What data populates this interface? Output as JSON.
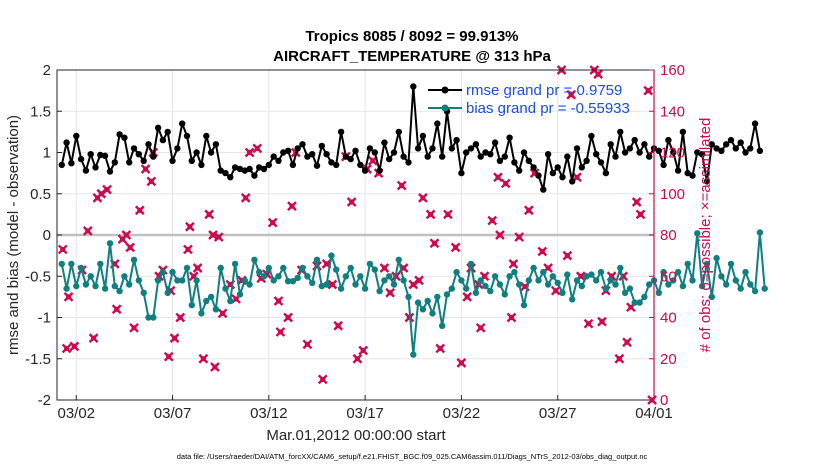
{
  "chart_data": {
    "type": "line",
    "title": "Tropics 8085 / 8092 = 99.913%",
    "subtitle": "AIRCRAFT_TEMPERATURE @ 313 hPa",
    "xlabel": "Mar.01,2012 00:00:00 start",
    "ylabel": "rmse and bias (model - observation)",
    "ylabel_right": "# of obs: o=possible; ×=assimilated",
    "footnote": "data file: /Users/raeder/DAI/ATM_forcXX/CAM6_setup/f.e21.FHIST_BGC.f09_025.CAM6assim.011/Diags_NTrS_2012-03/obs_diag_output.nc",
    "xlim": [
      0,
      31
    ],
    "ylim": [
      -2,
      2
    ],
    "ylim_right": [
      0,
      160
    ],
    "x_tick_positions": [
      1,
      6,
      11,
      16,
      21,
      26,
      31
    ],
    "x_tick_labels": [
      "03/02",
      "03/07",
      "03/12",
      "03/17",
      "03/22",
      "03/27",
      "04/01"
    ],
    "y_ticks": [
      -2,
      -1.5,
      -1,
      -0.5,
      0,
      0.5,
      1,
      1.5,
      2
    ],
    "y_ticks_right": [
      0,
      20,
      40,
      60,
      80,
      100,
      120,
      140,
      160
    ],
    "legend": [
      "rmse grand pr = 0.9759",
      "bias grand pr = -0.55933"
    ],
    "colors": {
      "rmse": "#000000",
      "bias": "#0f7f7f",
      "obs": "#cc0a4f",
      "zero": "#bfbfbf",
      "grid": "#e6e6e6"
    },
    "x_start": 0.25,
    "x_step": 0.25,
    "series": [
      {
        "name": "rmse",
        "values": [
          0.85,
          1.12,
          0.87,
          1.2,
          0.92,
          0.78,
          0.98,
          0.82,
          0.97,
          0.96,
          0.77,
          0.88,
          1.22,
          1.18,
          0.88,
          1.05,
          0.98,
          0.9,
          1.1,
          0.95,
          1.3,
          1.15,
          1.25,
          0.9,
          1.05,
          1.35,
          1.2,
          0.9,
          1.0,
          0.85,
          1.2,
          1.0,
          1.1,
          0.78,
          0.75,
          0.7,
          0.82,
          0.8,
          0.78,
          0.8,
          0.72,
          0.82,
          0.8,
          0.85,
          0.95,
          0.9,
          1.0,
          1.02,
          0.85,
          1.05,
          1.1,
          0.95,
          0.98,
          0.84,
          1.08,
          0.98,
          0.88,
          0.85,
          1.25,
          0.95,
          0.92,
          1.02,
          0.85,
          0.78,
          1.05,
          1.0,
          0.78,
          1.12,
          0.92,
          1.0,
          1.25,
          0.95,
          0.88,
          1.8,
          1.05,
          1.2,
          0.95,
          1.05,
          1.35,
          0.95,
          1.5,
          1.05,
          1.15,
          0.75,
          1.0,
          1.05,
          1.1,
          0.95,
          1.0,
          0.98,
          1.12,
          0.9,
          0.95,
          1.18,
          0.88,
          0.78,
          1.0,
          0.9,
          0.82,
          0.72,
          0.55,
          0.98,
          0.75,
          0.82,
          0.7,
          0.95,
          0.65,
          1.05,
          0.82,
          0.9,
          1.2,
          0.98,
          0.88,
          0.75,
          1.1,
          0.95,
          1.25,
          1.0,
          1.05,
          1.15,
          1.0,
          1.1,
          0.95,
          1.05,
          1.02,
          0.85,
          1.15,
          1.0,
          0.78,
          1.25,
          0.75,
          0.72,
          1.0,
          0.98,
          0.65,
          1.1,
          1.05,
          1.02,
          1.1,
          1.15,
          1.05,
          1.12,
          1.0,
          1.05,
          1.35,
          1.02
        ]
      },
      {
        "name": "bias",
        "values": [
          -0.35,
          -0.65,
          -0.35,
          -0.62,
          -0.4,
          -0.6,
          -0.5,
          -0.62,
          -0.35,
          -0.65,
          -0.1,
          -0.62,
          -0.68,
          -0.5,
          -0.6,
          -0.3,
          -0.55,
          -0.7,
          -1.0,
          -1.0,
          -0.55,
          -0.45,
          -0.7,
          -0.45,
          -0.55,
          -0.55,
          -0.4,
          -0.85,
          -0.55,
          -0.95,
          -0.8,
          -0.75,
          -0.9,
          -0.4,
          -0.65,
          -0.8,
          -0.35,
          -0.72,
          -0.55,
          -0.6,
          -0.3,
          -0.45,
          -0.5,
          -0.4,
          -0.55,
          -0.5,
          -0.4,
          -0.56,
          -0.56,
          -0.52,
          -0.4,
          -0.5,
          -0.58,
          -0.3,
          -0.62,
          -0.6,
          -0.25,
          -0.42,
          -0.65,
          -0.5,
          -0.4,
          -0.6,
          -0.5,
          -0.65,
          -0.35,
          -0.42,
          -0.68,
          -0.55,
          -0.5,
          -0.6,
          -0.3,
          -0.55,
          -0.75,
          -1.45,
          -0.82,
          -0.9,
          -0.8,
          -0.95,
          -0.75,
          -1.1,
          -0.72,
          -0.65,
          -0.45,
          -0.55,
          -0.65,
          -0.35,
          -0.7,
          -0.55,
          -0.62,
          -0.68,
          -0.5,
          -0.6,
          -0.72,
          -0.5,
          -0.45,
          -0.6,
          -0.85,
          -0.55,
          -0.4,
          -0.55,
          -0.45,
          -0.6,
          -0.5,
          -0.58,
          -0.7,
          -0.48,
          -0.78,
          -0.55,
          -0.62,
          -0.5,
          -0.48,
          -0.55,
          -0.45,
          -0.65,
          -0.55,
          -0.6,
          -0.4,
          -0.7,
          -0.65,
          -0.82,
          -0.82,
          -0.75,
          -0.6,
          -0.55,
          -0.7,
          -0.45,
          -0.6,
          -0.55,
          -0.45,
          -0.62,
          -0.35,
          -0.55,
          0.02,
          -0.62,
          -0.35,
          -0.75,
          -0.28,
          -0.5,
          -0.6,
          -0.35,
          -0.55,
          -0.65,
          -0.45,
          -0.6,
          -0.68,
          0.03,
          -0.65
        ]
      }
    ],
    "obs_counts": [
      [
        0.3,
        73
      ],
      [
        0.5,
        25
      ],
      [
        0.6,
        50
      ],
      [
        0.9,
        26
      ],
      [
        1.3,
        63
      ],
      [
        1.6,
        82
      ],
      [
        1.9,
        30
      ],
      [
        2.1,
        98
      ],
      [
        2.3,
        100
      ],
      [
        2.6,
        102
      ],
      [
        3.0,
        66
      ],
      [
        3.1,
        44
      ],
      [
        3.4,
        78
      ],
      [
        3.6,
        80
      ],
      [
        3.8,
        74
      ],
      [
        4.0,
        35
      ],
      [
        4.3,
        92
      ],
      [
        4.6,
        112
      ],
      [
        4.9,
        106
      ],
      [
        5.0,
        120
      ],
      [
        5.3,
        60
      ],
      [
        5.5,
        63
      ],
      [
        5.8,
        21
      ],
      [
        5.9,
        53
      ],
      [
        6.1,
        30
      ],
      [
        6.4,
        40
      ],
      [
        6.8,
        73
      ],
      [
        6.9,
        84
      ],
      [
        7.1,
        60
      ],
      [
        7.3,
        64
      ],
      [
        7.6,
        20
      ],
      [
        7.9,
        90
      ],
      [
        8.1,
        80
      ],
      [
        8.2,
        16
      ],
      [
        8.4,
        79
      ],
      [
        8.6,
        42
      ],
      [
        9.0,
        56
      ],
      [
        9.3,
        49
      ],
      [
        9.6,
        58
      ],
      [
        9.8,
        98
      ],
      [
        10.0,
        120
      ],
      [
        10.4,
        122
      ],
      [
        10.6,
        59
      ],
      [
        10.9,
        61
      ],
      [
        11.2,
        86
      ],
      [
        11.5,
        48
      ],
      [
        11.6,
        33
      ],
      [
        12.0,
        40
      ],
      [
        12.2,
        94
      ],
      [
        12.4,
        120
      ],
      [
        12.7,
        63
      ],
      [
        13.0,
        27
      ],
      [
        13.5,
        65
      ],
      [
        13.8,
        10
      ],
      [
        14.0,
        66
      ],
      [
        14.3,
        56
      ],
      [
        14.6,
        36
      ],
      [
        15.0,
        118
      ],
      [
        15.3,
        96
      ],
      [
        15.6,
        20
      ],
      [
        15.9,
        24
      ],
      [
        16.1,
        112
      ],
      [
        16.4,
        116
      ],
      [
        16.7,
        110
      ],
      [
        17.0,
        64
      ],
      [
        17.3,
        52
      ],
      [
        17.6,
        60
      ],
      [
        17.9,
        104
      ],
      [
        18.0,
        64
      ],
      [
        18.3,
        40
      ],
      [
        18.5,
        56
      ],
      [
        18.8,
        58
      ],
      [
        19.0,
        98
      ],
      [
        19.4,
        90
      ],
      [
        19.6,
        76
      ],
      [
        19.9,
        25
      ],
      [
        20.3,
        90
      ],
      [
        20.7,
        74
      ],
      [
        21.0,
        18
      ],
      [
        21.3,
        50
      ],
      [
        21.5,
        64
      ],
      [
        21.9,
        56
      ],
      [
        22.0,
        35
      ],
      [
        22.2,
        60
      ],
      [
        22.6,
        87
      ],
      [
        22.9,
        108
      ],
      [
        23.0,
        80
      ],
      [
        23.3,
        105
      ],
      [
        23.6,
        40
      ],
      [
        23.7,
        66
      ],
      [
        24.0,
        79
      ],
      [
        24.3,
        55
      ],
      [
        24.5,
        92
      ],
      [
        24.8,
        110
      ],
      [
        25.2,
        72
      ],
      [
        25.5,
        64
      ],
      [
        25.9,
        53
      ],
      [
        26.2,
        160
      ],
      [
        26.5,
        70
      ],
      [
        26.7,
        148
      ],
      [
        27.0,
        108
      ],
      [
        27.2,
        60
      ],
      [
        27.6,
        37
      ],
      [
        27.9,
        160
      ],
      [
        28.1,
        158
      ],
      [
        28.3,
        38
      ],
      [
        28.5,
        53
      ],
      [
        28.8,
        60
      ],
      [
        29.2,
        20
      ],
      [
        29.4,
        60
      ],
      [
        29.6,
        28
      ],
      [
        29.8,
        45
      ],
      [
        30.1,
        96
      ],
      [
        30.3,
        90
      ],
      [
        30.7,
        150
      ],
      [
        30.9,
        0
      ]
    ]
  }
}
